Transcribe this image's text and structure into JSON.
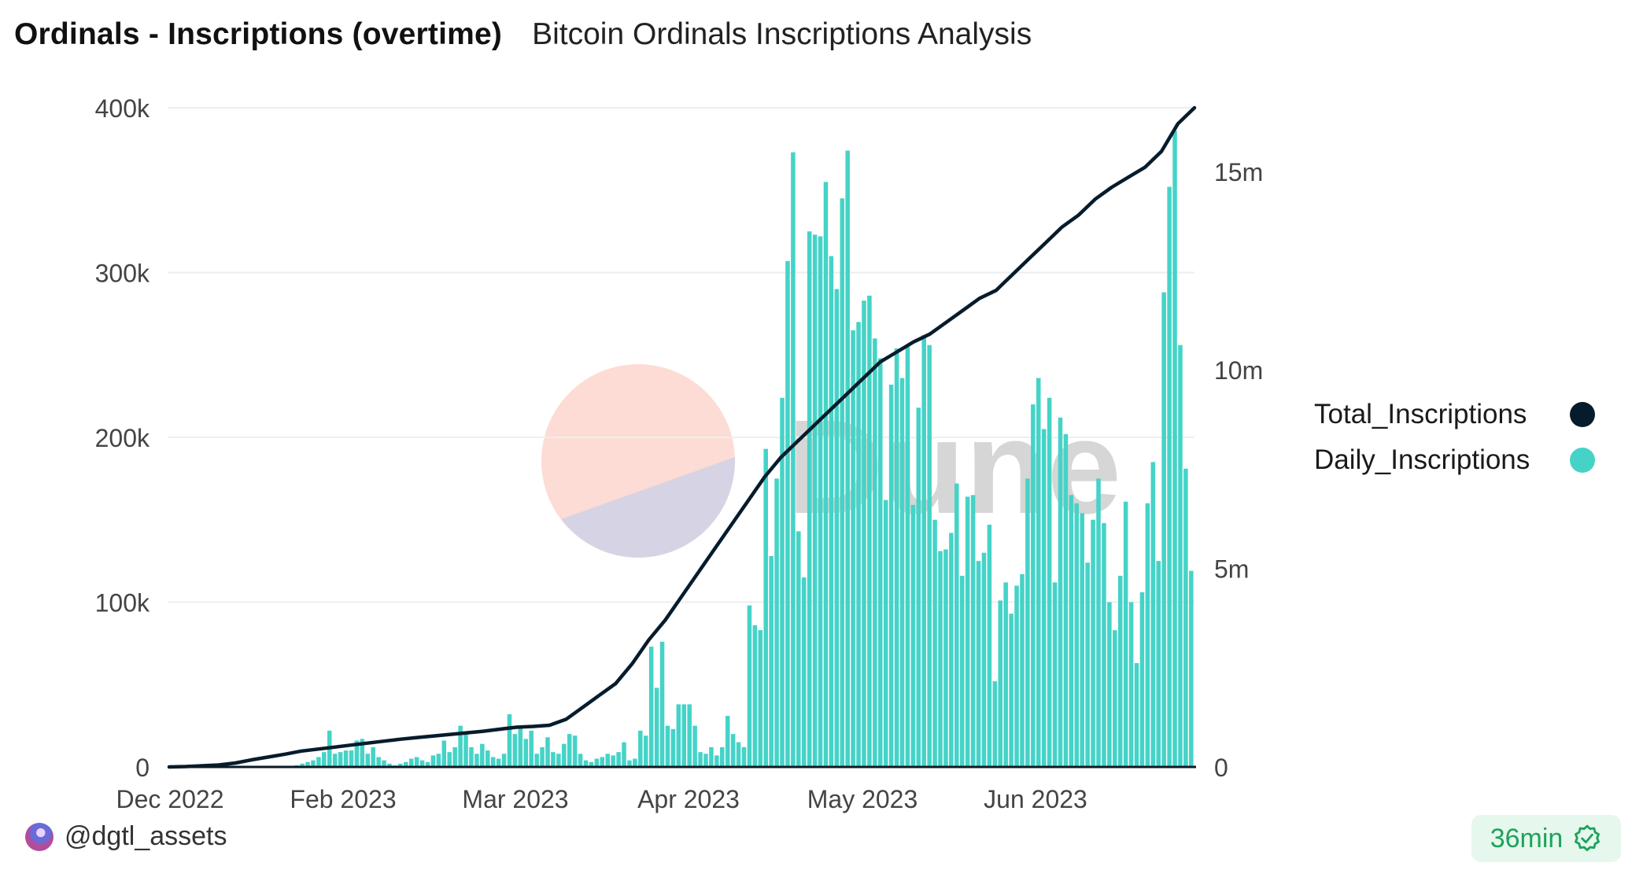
{
  "header": {
    "title": "Ordinals - Inscriptions (overtime)",
    "subtitle": "Bitcoin Ordinals Inscriptions Analysis"
  },
  "footer": {
    "author": "@dgtl_assets",
    "avatar_icon": "user-avatar",
    "freshness": "36min",
    "freshness_icon": "verified-badge-icon"
  },
  "watermark": "Dune",
  "colors": {
    "daily": "#45d3c7",
    "total": "#061c2c",
    "badge_text": "#1ea35a",
    "badge_bg": "#e6f7ee"
  },
  "chart_data": {
    "type": "bar+line",
    "title": "Ordinals - Inscriptions (overtime)",
    "xlabel": "",
    "ylabel_left": "",
    "ylabel_right": "",
    "x_tick_labels": [
      "Dec 2022",
      "Feb 2023",
      "Mar 2023",
      "Apr 2023",
      "May 2023",
      "Jun 2023"
    ],
    "y_left_ticks": [
      "0",
      "100k",
      "200k",
      "300k",
      "400k"
    ],
    "y_left_range": [
      0,
      400000
    ],
    "y_right_ticks": [
      "0",
      "5m",
      "10m",
      "15m"
    ],
    "y_right_range": [
      0,
      16600000
    ],
    "grid": true,
    "legend_position": "right",
    "legend": [
      "Total_Inscriptions",
      "Daily_Inscriptions"
    ],
    "x_start": "2022-12-31",
    "x_end": "2023-06-29",
    "series": [
      {
        "name": "Daily_Inscriptions",
        "type": "bar",
        "axis": "left",
        "unit": "thousands",
        "values": [
          0,
          0,
          0,
          0,
          0,
          0,
          0,
          0,
          0,
          0,
          0,
          0,
          0,
          0,
          0,
          0,
          0,
          0,
          0,
          0,
          0.2,
          0.3,
          0.5,
          1,
          2,
          3,
          4,
          6,
          9,
          22,
          8,
          9,
          10,
          10,
          16,
          17,
          8,
          12,
          6,
          4,
          2,
          1,
          2,
          3,
          5,
          6,
          4,
          3,
          7,
          8,
          16,
          9,
          12,
          25,
          21,
          12,
          8,
          14,
          10,
          6,
          5,
          8,
          32,
          20,
          24,
          17,
          22,
          8,
          12,
          18,
          9,
          8,
          14,
          20,
          19,
          8,
          4,
          3,
          5,
          6,
          8,
          7,
          9,
          15,
          4,
          5,
          22,
          19,
          73,
          48,
          76,
          25,
          23,
          38,
          38,
          38,
          25,
          9,
          8,
          12,
          7,
          12,
          31,
          20,
          15,
          12,
          98,
          86,
          83,
          193,
          128,
          175,
          224,
          307,
          373,
          143,
          115,
          325,
          323,
          322,
          355,
          310,
          290,
          345,
          374,
          265,
          270,
          283,
          286,
          260,
          248,
          162,
          232,
          254,
          236,
          255,
          159,
          218,
          262,
          256,
          150,
          131,
          132,
          142,
          172,
          116,
          164,
          165,
          125,
          130,
          147,
          52,
          101,
          112,
          93,
          110,
          117,
          175,
          220,
          236,
          205,
          224,
          112,
          212,
          202,
          165,
          160,
          154,
          124,
          150,
          175,
          148,
          100,
          83,
          116,
          161,
          100,
          63,
          106,
          160,
          185,
          125,
          288,
          352,
          386,
          256,
          181,
          119
        ]
      },
      {
        "name": "Total_Inscriptions",
        "type": "line",
        "axis": "right",
        "unit": "millions",
        "values": [
          0,
          0.01,
          0.03,
          0.05,
          0.1,
          0.18,
          0.25,
          0.32,
          0.4,
          0.45,
          0.5,
          0.55,
          0.6,
          0.65,
          0.7,
          0.74,
          0.78,
          0.82,
          0.86,
          0.9,
          0.95,
          1.0,
          1.02,
          1.05,
          1.2,
          1.5,
          1.8,
          2.1,
          2.6,
          3.2,
          3.7,
          4.3,
          4.9,
          5.5,
          6.1,
          6.7,
          7.3,
          7.8,
          8.2,
          8.6,
          9.0,
          9.4,
          9.8,
          10.2,
          10.45,
          10.7,
          10.9,
          11.2,
          11.5,
          11.8,
          12.0,
          12.4,
          12.8,
          13.2,
          13.6,
          13.9,
          14.3,
          14.6,
          14.85,
          15.1,
          15.5,
          16.2,
          16.6
        ]
      }
    ]
  }
}
